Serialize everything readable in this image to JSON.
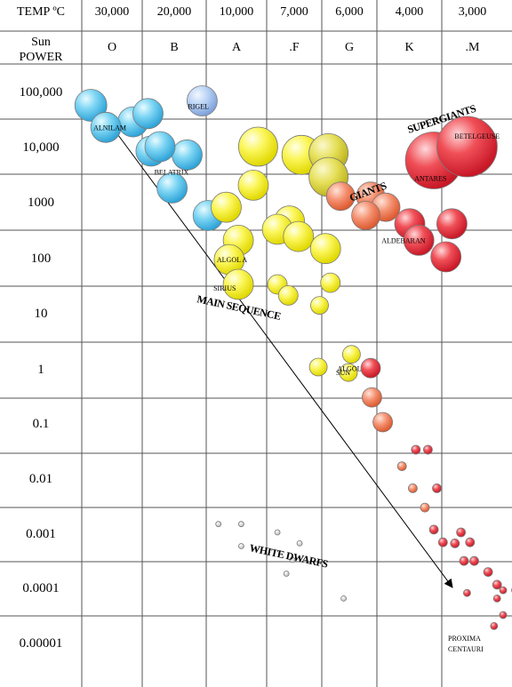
{
  "chart_data": {
    "type": "scatter",
    "header": {
      "temp_label": "TEMP ºC",
      "power_label_line1": "Sun",
      "power_label_line2": "POWER"
    },
    "temperatures": [
      "30,000",
      "20,000",
      "10,000",
      "7,000",
      "6,000",
      "4,000",
      "3,000"
    ],
    "spectral_classes": [
      "O",
      "B",
      "A",
      ".F",
      "G",
      "K",
      ".M"
    ],
    "luminosities": [
      "100,000",
      "10,000",
      "1000",
      "100",
      "10",
      "1",
      "0.1",
      "0.01",
      "0.001",
      "0.0001",
      "0.00001"
    ],
    "colors": {
      "blue": "#5ec8ee",
      "lightblue": "#a9c8f0",
      "yellow": "#f2ee22",
      "khaki": "#dcd63e",
      "orange": "#f07c58",
      "red": "#e8323c",
      "white": "#d8d8d8",
      "outline": "#7a7a7a"
    },
    "stars": [
      {
        "c": 0.15,
        "l": 4.75,
        "r": 18,
        "color": "blue"
      },
      {
        "c": 0.85,
        "l": 4.45,
        "r": 17,
        "color": "blue"
      },
      {
        "c": 1.1,
        "l": 4.6,
        "r": 17,
        "color": "blue"
      },
      {
        "c": 2.0,
        "l": 4.83,
        "r": 17,
        "color": "lightblue",
        "label": "RIGEL",
        "lx": -2,
        "ly": 6
      },
      {
        "c": 0.4,
        "l": 4.35,
        "r": 17,
        "color": "blue",
        "label": "ALNILAM",
        "lx": 0,
        "ly": 0
      },
      {
        "c": 1.5,
        "l": 3.25,
        "r": 17,
        "color": "blue",
        "label": "BELATRIX",
        "lx": -6,
        "ly": -18
      },
      {
        "c": 1.15,
        "l": 3.92,
        "r": 17,
        "color": "blue"
      },
      {
        "c": 1.75,
        "l": 3.85,
        "r": 17,
        "color": "blue"
      },
      {
        "c": 1.3,
        "l": 4.0,
        "r": 17,
        "color": "blue"
      },
      {
        "c": 2.1,
        "l": 2.75,
        "r": 17,
        "color": "blue"
      },
      {
        "c": 2.93,
        "l": 4.0,
        "r": 22,
        "color": "yellow"
      },
      {
        "c": 3.65,
        "l": 3.85,
        "r": 22,
        "color": "yellow"
      },
      {
        "c": 4.1,
        "l": 3.88,
        "r": 22,
        "color": "khaki"
      },
      {
        "c": 4.1,
        "l": 3.45,
        "r": 22,
        "color": "khaki"
      },
      {
        "c": 2.4,
        "l": 2.9,
        "r": 17,
        "color": "yellow"
      },
      {
        "c": 2.85,
        "l": 3.3,
        "r": 17,
        "color": "yellow"
      },
      {
        "c": 3.45,
        "l": 2.65,
        "r": 17,
        "color": "yellow"
      },
      {
        "c": 3.25,
        "l": 2.5,
        "r": 17,
        "color": "yellow"
      },
      {
        "c": 2.6,
        "l": 2.3,
        "r": 17,
        "color": "yellow"
      },
      {
        "c": 3.6,
        "l": 2.37,
        "r": 17,
        "color": "yellow"
      },
      {
        "c": 4.05,
        "l": 2.15,
        "r": 17,
        "color": "yellow"
      },
      {
        "c": 2.45,
        "l": 1.95,
        "r": 17,
        "color": "yellow",
        "label": "ALGOL A",
        "lx": 0,
        "ly": 0
      },
      {
        "c": 2.6,
        "l": 1.5,
        "r": 17,
        "color": "yellow",
        "label": "SIRIUS",
        "lx": -14,
        "ly": 4
      },
      {
        "c": 3.25,
        "l": 1.5,
        "r": 11,
        "color": "yellow"
      },
      {
        "c": 3.43,
        "l": 1.3,
        "r": 11,
        "color": "yellow"
      },
      {
        "c": 4.13,
        "l": 1.53,
        "r": 11,
        "color": "yellow"
      },
      {
        "c": 3.95,
        "l": 1.12,
        "r": 10,
        "color": "yellow"
      },
      {
        "c": 4.48,
        "l": 0.23,
        "r": 10,
        "color": "yellow",
        "label": "ALGOL",
        "lx": -2,
        "ly": 16
      },
      {
        "c": 3.93,
        "l": 0.0,
        "r": 10,
        "color": "yellow"
      },
      {
        "c": 4.43,
        "l": -0.1,
        "r": 10,
        "color": "yellow",
        "label": "SUN",
        "lx": 0,
        "ly": 0
      },
      {
        "c": 4.8,
        "l": -0.02,
        "r": 11,
        "color": "red"
      },
      {
        "c": 4.82,
        "l": -0.55,
        "r": 11,
        "color": "orange"
      },
      {
        "c": 5.0,
        "l": -1.0,
        "r": 11,
        "color": "orange"
      },
      {
        "c": 4.3,
        "l": 3.1,
        "r": 16,
        "color": "orange"
      },
      {
        "c": 4.8,
        "l": 3.1,
        "r": 16,
        "color": "orange",
        "label": "GIANTS",
        "lx": -8,
        "ly": 14,
        "region": true
      },
      {
        "c": 5.05,
        "l": 2.9,
        "r": 16,
        "color": "orange"
      },
      {
        "c": 4.72,
        "l": 2.75,
        "r": 16,
        "color": "orange"
      },
      {
        "c": 5.45,
        "l": 2.6,
        "r": 17,
        "color": "red"
      },
      {
        "c": 6.15,
        "l": 2.6,
        "r": 17,
        "color": "red"
      },
      {
        "c": 5.6,
        "l": 2.3,
        "r": 17,
        "color": "red",
        "label": "ALDEBARAN",
        "lx": -28,
        "ly": 0
      },
      {
        "c": 6.05,
        "l": 2.0,
        "r": 17,
        "color": "red"
      },
      {
        "c": 5.85,
        "l": 3.75,
        "r": 32,
        "color": "red",
        "label": "ANTARES",
        "lx": -8,
        "ly": 20
      },
      {
        "c": 6.4,
        "l": 4.0,
        "r": 34,
        "color": "red",
        "label": "BETELGEUSE",
        "lx": 0,
        "ly": -12
      },
      {
        "c": 5.55,
        "l": -1.5,
        "r": 5,
        "color": "red"
      },
      {
        "c": 5.75,
        "l": -1.5,
        "r": 5,
        "color": "red"
      },
      {
        "c": 5.32,
        "l": -1.8,
        "r": 5,
        "color": "orange"
      },
      {
        "c": 5.5,
        "l": -2.2,
        "r": 5,
        "color": "orange"
      },
      {
        "c": 5.9,
        "l": -2.2,
        "r": 5,
        "color": "red"
      },
      {
        "c": 5.7,
        "l": -2.55,
        "r": 5,
        "color": "orange"
      },
      {
        "c": 5.85,
        "l": -2.95,
        "r": 5,
        "color": "red"
      },
      {
        "c": 6.0,
        "l": -3.18,
        "r": 5,
        "color": "red"
      },
      {
        "c": 6.3,
        "l": -3.0,
        "r": 5,
        "color": "red"
      },
      {
        "c": 6.2,
        "l": -3.2,
        "r": 5,
        "color": "red"
      },
      {
        "c": 6.45,
        "l": -3.18,
        "r": 5,
        "color": "red"
      },
      {
        "c": 6.35,
        "l": -3.52,
        "r": 5,
        "color": "red"
      },
      {
        "c": 6.52,
        "l": -3.52,
        "r": 5,
        "color": "red"
      },
      {
        "c": 6.75,
        "l": -3.72,
        "r": 5,
        "color": "red"
      },
      {
        "c": 6.9,
        "l": -3.95,
        "r": 5,
        "color": "red"
      },
      {
        "c": 7.0,
        "l": -4.05,
        "r": 4,
        "color": "red"
      },
      {
        "c": 7.2,
        "l": -4.05,
        "r": 4,
        "color": "red"
      },
      {
        "c": 6.4,
        "l": -4.1,
        "r": 4,
        "color": "red"
      },
      {
        "c": 6.9,
        "l": -4.2,
        "r": 4,
        "color": "red"
      },
      {
        "c": 7.0,
        "l": -4.5,
        "r": 4,
        "color": "red"
      },
      {
        "c": 6.85,
        "l": -4.7,
        "r": 4,
        "color": "red"
      },
      {
        "c": 7.3,
        "l": -5.25,
        "r": 4,
        "color": "red"
      },
      {
        "c": 2.27,
        "l": -2.85,
        "r": 3,
        "color": "white"
      },
      {
        "c": 2.65,
        "l": -2.85,
        "r": 3,
        "color": "white"
      },
      {
        "c": 2.65,
        "l": -3.25,
        "r": 3,
        "color": "white"
      },
      {
        "c": 3.25,
        "l": -3.0,
        "r": 3,
        "color": "white"
      },
      {
        "c": 3.62,
        "l": -3.2,
        "r": 3,
        "color": "white"
      },
      {
        "c": 3.5,
        "l": -3.5,
        "r": 3,
        "color": "white"
      },
      {
        "c": 3.4,
        "l": -3.75,
        "r": 3,
        "color": "white"
      },
      {
        "c": 4.35,
        "l": -4.2,
        "r": 3,
        "color": "white"
      }
    ],
    "regions": {
      "main_sequence": "MAIN SEQUENCE",
      "white_dwarfs": "WHITE DWARFS",
      "supergiants": "SUPERGIANTS"
    },
    "proxima_line1": "PROXIMA",
    "proxima_line2": "CENTAURI"
  }
}
